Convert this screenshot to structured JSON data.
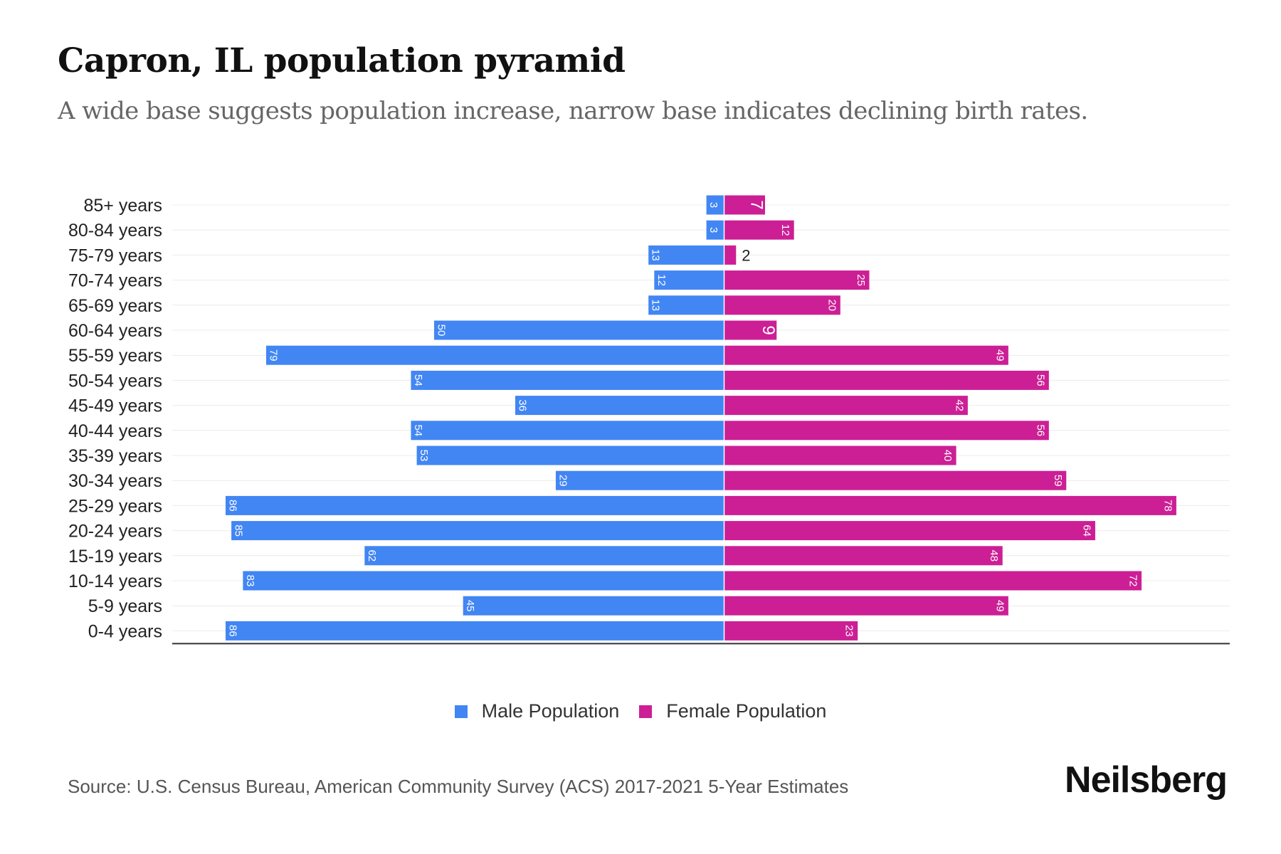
{
  "chart_data": {
    "type": "bar",
    "orientation": "horizontal-diverging",
    "title": "Capron, IL population pyramid",
    "subtitle": "A wide base suggests population increase, narrow base indicates declining birth rates.",
    "categories": [
      "85+ years",
      "80-84 years",
      "75-79 years",
      "70-74 years",
      "65-69 years",
      "60-64 years",
      "55-59 years",
      "50-54 years",
      "45-49 years",
      "40-44 years",
      "35-39 years",
      "30-34 years",
      "25-29 years",
      "20-24 years",
      "15-19 years",
      "10-14 years",
      "5-9 years",
      "0-4 years"
    ],
    "series": [
      {
        "name": "Male Population",
        "color": "#4286f4",
        "values": [
          3,
          3,
          13,
          12,
          13,
          50,
          79,
          54,
          36,
          54,
          53,
          29,
          86,
          85,
          62,
          83,
          45,
          86
        ]
      },
      {
        "name": "Female Population",
        "color": "#cc1f95",
        "values": [
          7,
          12,
          2,
          25,
          20,
          9,
          49,
          56,
          42,
          56,
          40,
          59,
          78,
          64,
          48,
          72,
          49,
          23
        ]
      }
    ],
    "xlim": [
      -95,
      88
    ],
    "legend_position": "bottom-center",
    "grid": true
  },
  "legend": {
    "male": "Male Population",
    "female": "Female Population"
  },
  "footer": {
    "source": "Source: U.S. Census Bureau, American Community Survey (ACS) 2017-2021 5-Year Estimates",
    "brand": "Neilsberg"
  }
}
